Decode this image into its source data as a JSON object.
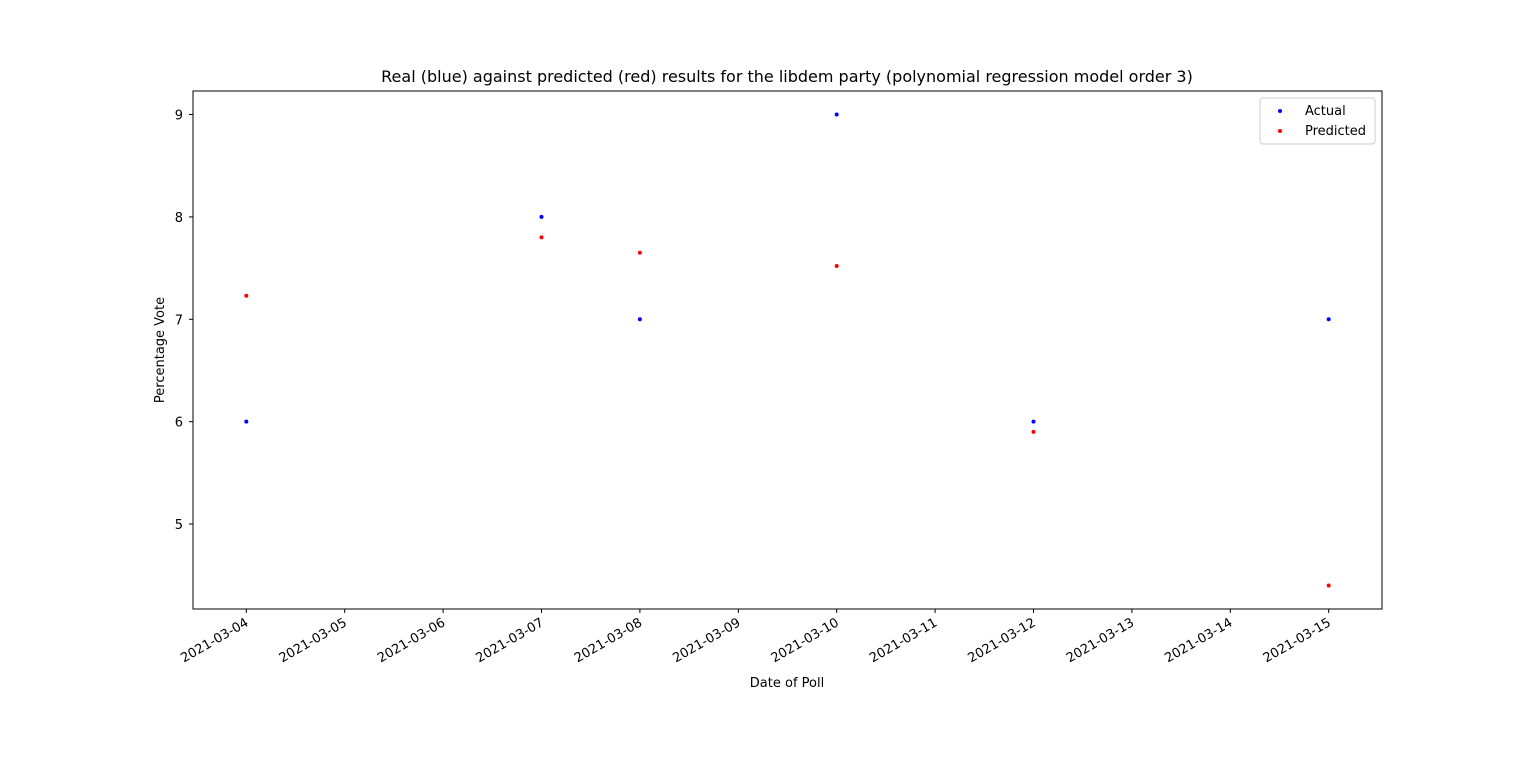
{
  "chart_data": {
    "type": "scatter",
    "title": "Real (blue) against predicted (red) results for the libdem party (polynomial regression model order 3)",
    "xlabel": "Date of Poll",
    "ylabel": "Percentage Vote",
    "x_ticks": [
      "2021-03-04",
      "2021-03-05",
      "2021-03-06",
      "2021-03-07",
      "2021-03-08",
      "2021-03-09",
      "2021-03-10",
      "2021-03-11",
      "2021-03-12",
      "2021-03-13",
      "2021-03-14",
      "2021-03-15"
    ],
    "y_ticks": [
      5,
      6,
      7,
      8,
      9
    ],
    "xlim": [
      "2021-03-03T11:00",
      "2021-03-15T13:00"
    ],
    "ylim": [
      4.17,
      9.23
    ],
    "grid": false,
    "legend_position": "top-right",
    "series": [
      {
        "name": "Actual",
        "color": "#0000ff",
        "points": [
          {
            "x": "2021-03-04",
            "y": 6.0
          },
          {
            "x": "2021-03-07",
            "y": 8.0
          },
          {
            "x": "2021-03-08",
            "y": 7.0
          },
          {
            "x": "2021-03-10",
            "y": 9.0
          },
          {
            "x": "2021-03-12",
            "y": 6.0
          },
          {
            "x": "2021-03-15",
            "y": 7.0
          }
        ]
      },
      {
        "name": "Predicted",
        "color": "#ff0000",
        "points": [
          {
            "x": "2021-03-04",
            "y": 7.23
          },
          {
            "x": "2021-03-07",
            "y": 7.8
          },
          {
            "x": "2021-03-08",
            "y": 7.65
          },
          {
            "x": "2021-03-10",
            "y": 7.52
          },
          {
            "x": "2021-03-12",
            "y": 5.9
          },
          {
            "x": "2021-03-15",
            "y": 4.4
          }
        ]
      }
    ]
  }
}
